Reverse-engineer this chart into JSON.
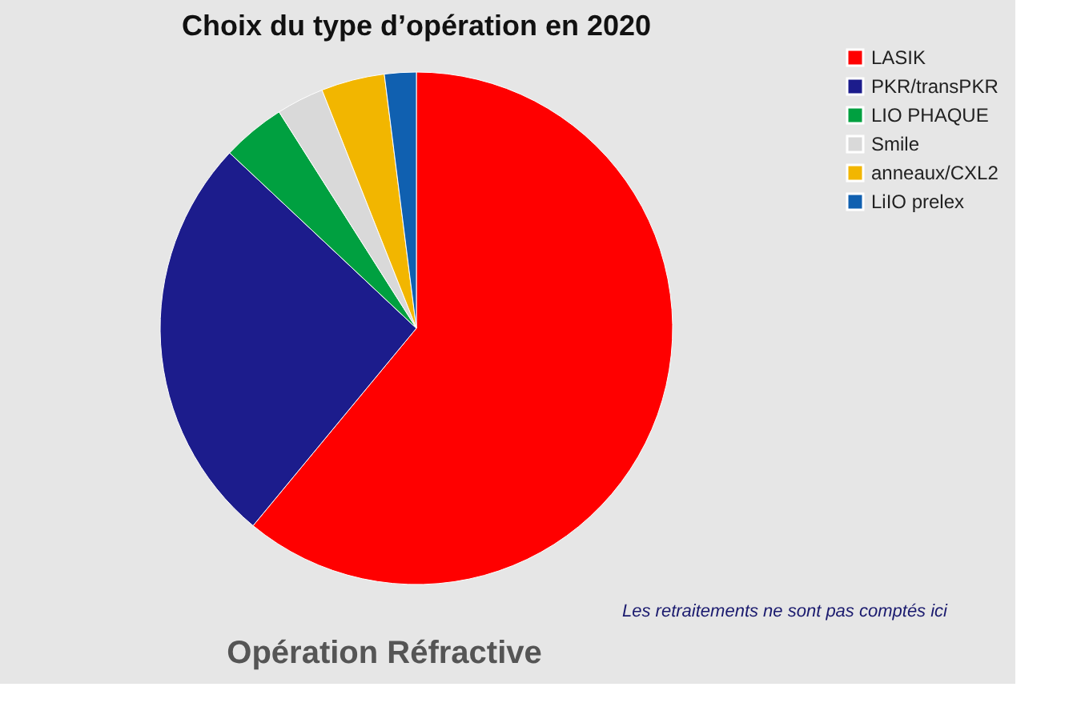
{
  "chart_data": {
    "type": "pie",
    "title": "Choix du type d’opération en 2020",
    "categories": [
      "LASIK",
      "PKR/transPKR",
      "LIO PHAQUE",
      "Smile",
      "anneaux/CXL2",
      "LiIO prelex"
    ],
    "values": [
      61,
      26,
      4,
      3,
      4,
      2
    ],
    "colors": [
      "#ff0000",
      "#1c1c8c",
      "#00a040",
      "#d9d9d9",
      "#f2b600",
      "#1060b0"
    ],
    "legend": "right",
    "annotations": [
      "Les retraitements ne sont pas comptés ici",
      "Opération Réfractive"
    ]
  }
}
